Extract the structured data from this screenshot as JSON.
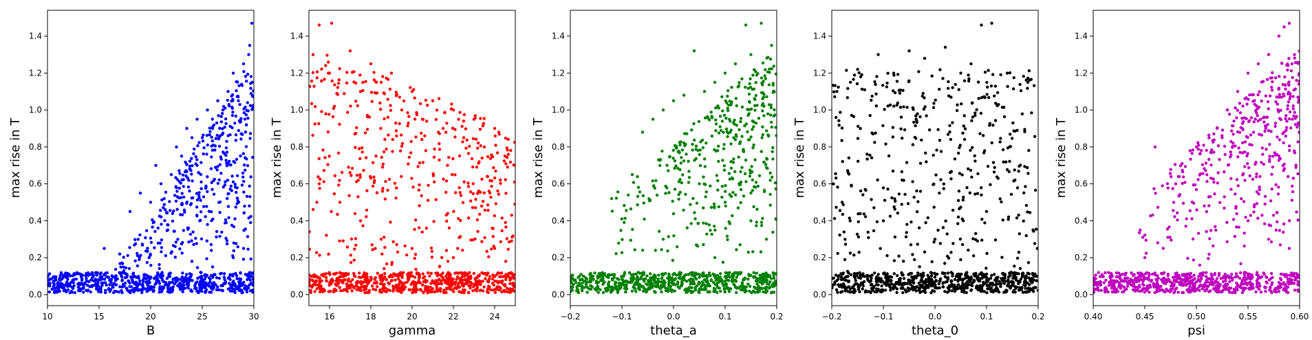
{
  "chart_data": [
    {
      "type": "scatter",
      "xlabel": "B",
      "ylabel": "max rise in T",
      "xlim": [
        10,
        30
      ],
      "ylim": [
        -0.06,
        1.54
      ],
      "xticks": [
        10,
        15,
        20,
        25,
        30
      ],
      "xtick_labels": [
        "10",
        "15",
        "20",
        "25",
        "30"
      ],
      "yticks": [
        0.0,
        0.2,
        0.4,
        0.6,
        0.8,
        1.0,
        1.2,
        1.4
      ],
      "ytick_labels": [
        "0.0",
        "0.2",
        "0.4",
        "0.6",
        "0.8",
        "1.0",
        "1.2",
        "1.4"
      ],
      "color": "#0000ff",
      "points": [
        [
          12,
          0.06
        ],
        [
          14,
          0.07
        ],
        [
          15.5,
          0.25
        ],
        [
          17,
          0.22
        ],
        [
          18,
          0.45
        ],
        [
          19,
          0.55
        ],
        [
          20,
          0.5
        ],
        [
          20.5,
          0.7
        ],
        [
          21,
          0.6
        ],
        [
          22,
          0.65
        ],
        [
          22.5,
          0.8
        ],
        [
          23,
          0.75
        ],
        [
          23.5,
          0.9
        ],
        [
          24,
          0.85
        ],
        [
          24.5,
          0.95
        ],
        [
          25,
          0.85
        ],
        [
          25.5,
          1.0
        ],
        [
          26,
          0.9
        ],
        [
          26.5,
          1.05
        ],
        [
          27,
          1.0
        ],
        [
          27.5,
          1.1
        ],
        [
          28,
          1.2
        ],
        [
          28.5,
          1.05
        ],
        [
          29,
          1.25
        ],
        [
          29.5,
          1.3
        ],
        [
          29.8,
          1.47
        ],
        [
          29.6,
          1.35
        ],
        [
          28,
          0.2
        ],
        [
          26,
          0.15
        ],
        [
          24,
          0.18
        ],
        [
          29,
          0.25
        ]
      ]
    },
    {
      "type": "scatter",
      "xlabel": "gamma",
      "ylabel": "max rise in T",
      "xlim": [
        15,
        25
      ],
      "ylim": [
        -0.06,
        1.54
      ],
      "xticks": [
        16,
        18,
        20,
        22,
        24
      ],
      "xtick_labels": [
        "16",
        "18",
        "20",
        "22",
        "24"
      ],
      "yticks": [
        0.0,
        0.2,
        0.4,
        0.6,
        0.8,
        1.0,
        1.2,
        1.4
      ],
      "ytick_labels": [
        "0.0",
        "0.2",
        "0.4",
        "0.6",
        "0.8",
        "1.0",
        "1.2",
        "1.4"
      ],
      "color": "#ff0000",
      "points": [
        [
          15.5,
          1.46
        ],
        [
          16.1,
          1.47
        ],
        [
          15.2,
          1.3
        ],
        [
          16,
          1.2
        ],
        [
          17,
          1.32
        ],
        [
          17.5,
          1.1
        ],
        [
          18,
          1.25
        ],
        [
          18.5,
          1.15
        ],
        [
          19,
          1.2
        ],
        [
          19.5,
          1.0
        ],
        [
          20,
          1.1
        ],
        [
          20.5,
          0.95
        ],
        [
          21,
          1.05
        ],
        [
          21.5,
          0.9
        ],
        [
          22,
          1.0
        ],
        [
          22.5,
          0.85
        ],
        [
          23,
          0.95
        ],
        [
          23.5,
          0.8
        ],
        [
          24,
          0.9
        ],
        [
          24.5,
          0.75
        ],
        [
          25,
          0.7
        ],
        [
          15.5,
          0.6
        ],
        [
          16.5,
          0.5
        ],
        [
          17.5,
          0.4
        ],
        [
          18.5,
          0.3
        ],
        [
          20,
          0.25
        ],
        [
          22,
          0.2
        ],
        [
          24,
          0.25
        ]
      ]
    },
    {
      "type": "scatter",
      "xlabel": "theta_a",
      "ylabel": "max rise in T",
      "xlim": [
        -0.2,
        0.2
      ],
      "ylim": [
        -0.06,
        1.54
      ],
      "xticks": [
        -0.2,
        -0.1,
        0.0,
        0.1,
        0.2
      ],
      "xtick_labels": [
        "−0.2",
        "−0.1",
        "0.0",
        "0.1",
        "0.2"
      ],
      "yticks": [
        0.0,
        0.2,
        0.4,
        0.6,
        0.8,
        1.0,
        1.2,
        1.4
      ],
      "ytick_labels": [
        "0.0",
        "0.2",
        "0.4",
        "0.6",
        "0.8",
        "1.0",
        "1.2",
        "1.4"
      ],
      "color": "#008000",
      "points": [
        [
          -0.12,
          0.52
        ],
        [
          -0.08,
          0.65
        ],
        [
          -0.06,
          0.88
        ],
        [
          -0.04,
          0.95
        ],
        [
          -0.02,
          1.0
        ],
        [
          0.0,
          1.05
        ],
        [
          0.02,
          1.08
        ],
        [
          0.04,
          1.32
        ],
        [
          0.06,
          1.1
        ],
        [
          0.08,
          1.15
        ],
        [
          0.1,
          1.2
        ],
        [
          0.12,
          1.25
        ],
        [
          0.14,
          1.46
        ],
        [
          0.17,
          1.47
        ],
        [
          0.19,
          1.35
        ],
        [
          0.15,
          1.3
        ],
        [
          0.05,
          0.6
        ],
        [
          0.1,
          0.5
        ],
        [
          0.15,
          0.4
        ],
        [
          0.18,
          0.3
        ],
        [
          -0.02,
          0.3
        ],
        [
          0.08,
          0.2
        ]
      ]
    },
    {
      "type": "scatter",
      "xlabel": "theta_0",
      "ylabel": "max rise in T",
      "xlim": [
        -0.2,
        0.2
      ],
      "ylim": [
        -0.06,
        1.54
      ],
      "xticks": [
        -0.2,
        -0.1,
        0.0,
        0.1,
        0.2
      ],
      "xtick_labels": [
        "−0.2",
        "−0.1",
        "0.0",
        "0.1",
        "0.2"
      ],
      "yticks": [
        0.0,
        0.2,
        0.4,
        0.6,
        0.8,
        1.0,
        1.2,
        1.4
      ],
      "ytick_labels": [
        "0.0",
        "0.2",
        "0.4",
        "0.6",
        "0.8",
        "1.0",
        "1.2",
        "1.4"
      ],
      "color": "#000000",
      "points": [
        [
          -0.19,
          1.1
        ],
        [
          -0.15,
          1.22
        ],
        [
          -0.11,
          1.3
        ],
        [
          -0.08,
          1.2
        ],
        [
          -0.05,
          1.32
        ],
        [
          -0.02,
          1.28
        ],
        [
          0.02,
          1.34
        ],
        [
          0.05,
          1.2
        ],
        [
          0.07,
          1.25
        ],
        [
          0.09,
          1.46
        ],
        [
          0.11,
          1.47
        ],
        [
          0.14,
          1.2
        ],
        [
          0.18,
          1.15
        ],
        [
          -0.18,
          0.5
        ],
        [
          -0.1,
          0.4
        ],
        [
          0.0,
          0.3
        ],
        [
          0.1,
          0.45
        ],
        [
          0.19,
          0.35
        ]
      ]
    },
    {
      "type": "scatter",
      "xlabel": "psi",
      "ylabel": "max rise in T",
      "xlim": [
        0.4,
        0.6
      ],
      "ylim": [
        -0.06,
        1.54
      ],
      "xticks": [
        0.4,
        0.45,
        0.5,
        0.55,
        0.6
      ],
      "xtick_labels": [
        "0.40",
        "0.45",
        "0.50",
        "0.55",
        "0.60"
      ],
      "yticks": [
        0.0,
        0.2,
        0.4,
        0.6,
        0.8,
        1.0,
        1.2,
        1.4
      ],
      "ytick_labels": [
        "0.0",
        "0.2",
        "0.4",
        "0.6",
        "0.8",
        "1.0",
        "1.2",
        "1.4"
      ],
      "color": "#bf00bf",
      "points": [
        [
          0.45,
          0.2
        ],
        [
          0.46,
          0.8
        ],
        [
          0.48,
          0.6
        ],
        [
          0.5,
          0.8
        ],
        [
          0.52,
          0.9
        ],
        [
          0.53,
          1.0
        ],
        [
          0.54,
          1.1
        ],
        [
          0.55,
          1.2
        ],
        [
          0.56,
          1.25
        ],
        [
          0.57,
          1.3
        ],
        [
          0.58,
          1.4
        ],
        [
          0.59,
          1.47
        ],
        [
          0.585,
          1.45
        ],
        [
          0.595,
          1.3
        ],
        [
          0.55,
          0.4
        ],
        [
          0.57,
          0.3
        ],
        [
          0.59,
          0.25
        ]
      ]
    }
  ]
}
